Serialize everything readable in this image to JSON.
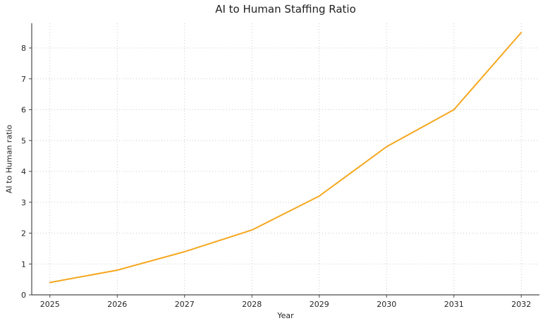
{
  "title": "AI to Human Staffing Ratio",
  "colors": {
    "line": "#F5A71E",
    "grid": "#CCCCCC",
    "spine": "#4A4A4A",
    "text": "#262626"
  },
  "chart_data": {
    "type": "line",
    "title": "AI to Human Staffing Ratio",
    "xlabel": "Year",
    "ylabel": "AI to Human ratio",
    "categories": [
      2025,
      2026,
      2027,
      2028,
      2029,
      2030,
      2031,
      2032
    ],
    "values": [
      0.4,
      0.8,
      1.4,
      2.1,
      3.2,
      4.8,
      6.0,
      8.5
    ],
    "series_name": "AI to Human ratio",
    "y_ticks": [
      0,
      1,
      2,
      3,
      4,
      5,
      6,
      7,
      8
    ],
    "ylim": [
      0,
      8.8
    ],
    "x_margin": 0.27,
    "grid": true,
    "grid_style": "dotted",
    "legend": "none",
    "line_color": "#F5A71E"
  }
}
